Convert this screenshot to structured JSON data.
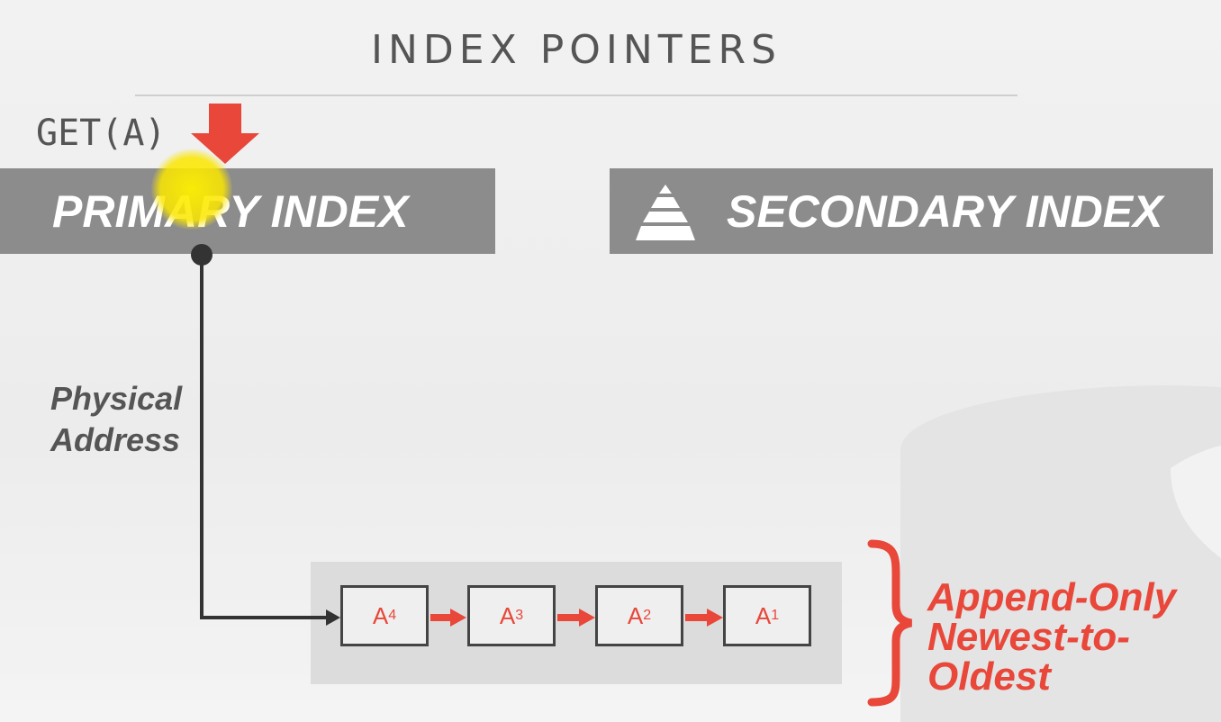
{
  "title": "INDEX POINTERS",
  "query": "GET(A)",
  "primary_index": "PRIMARY INDEX",
  "secondary_index": "SECONDARY INDEX",
  "pointer_label": [
    "Physical",
    "Address"
  ],
  "versions": [
    {
      "letter": "A",
      "sub": "4"
    },
    {
      "letter": "A",
      "sub": "3"
    },
    {
      "letter": "A",
      "sub": "2"
    },
    {
      "letter": "A",
      "sub": "1"
    }
  ],
  "chain_label": [
    "Append-Only",
    "Newest-to-",
    "Oldest"
  ],
  "colors": {
    "accent": "#e8473a",
    "index_box": "#8c8c8c",
    "text": "#555555"
  }
}
